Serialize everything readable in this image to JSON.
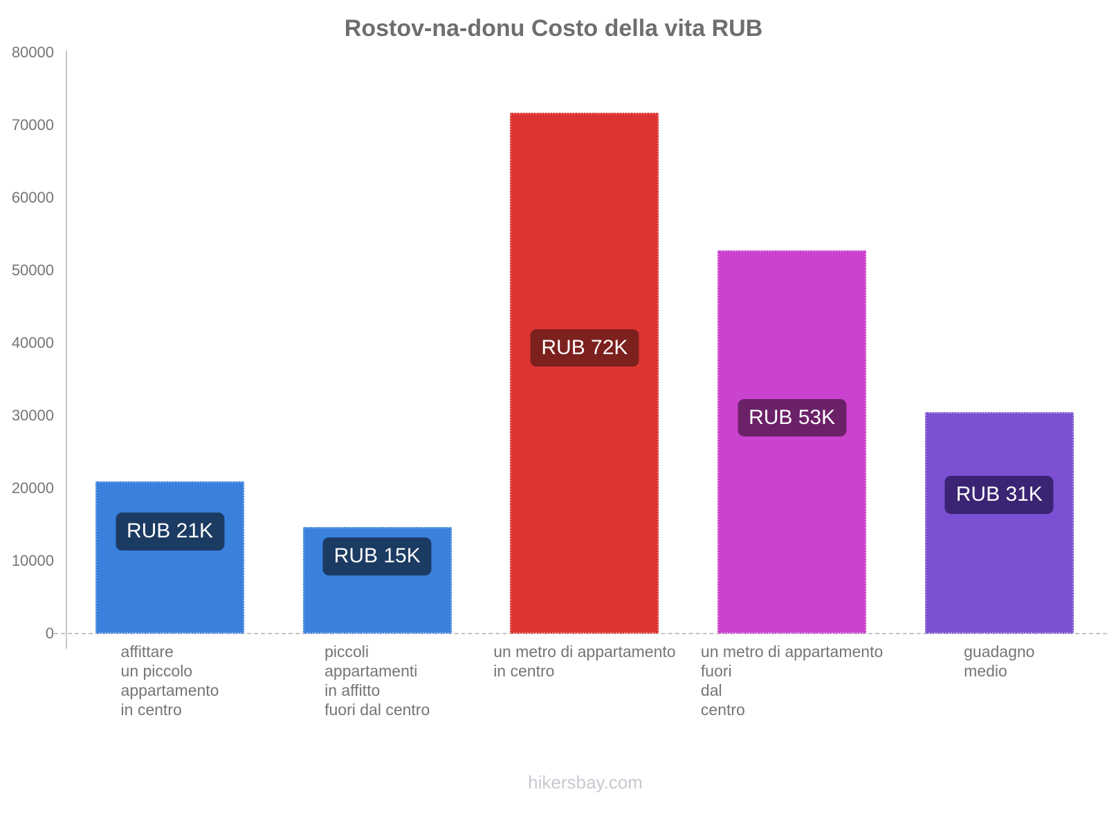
{
  "page": {
    "title": "Rostov-na-donu Costo della vita RUB",
    "watermark": "hikersbay.com"
  },
  "chart_data": {
    "type": "bar",
    "title": "Rostov-na-donu Costo della vita RUB",
    "currency": "RUB",
    "ylim": [
      0,
      80000
    ],
    "yticks": [
      0,
      10000,
      20000,
      30000,
      40000,
      50000,
      60000,
      70000,
      80000
    ],
    "grid": false,
    "legend": false,
    "axis_color": "#c6c6c6",
    "tick_text_color": "#757575",
    "title_color": "#6e6e6e",
    "watermark_color": "#c6c9d0",
    "bars": [
      {
        "category_lines": [
          "affittare",
          "un piccolo",
          "appartamento",
          "in centro"
        ],
        "value": 21000,
        "label": "RUB 21K",
        "bar_color": "#3a81de",
        "label_bg_color": "#1c3b62",
        "label_text_color": "#ffffff"
      },
      {
        "category_lines": [
          "piccoli",
          "appartamenti",
          "in affitto",
          "fuori dal centro"
        ],
        "value": 14700,
        "label": "RUB 15K",
        "bar_color": "#3a81de",
        "label_bg_color": "#1c3b62",
        "label_text_color": "#ffffff"
      },
      {
        "category_lines": [
          "un metro di appartamento",
          "in centro"
        ],
        "value": 71700,
        "label": "RUB 72K",
        "bar_color": "#de3431",
        "label_bg_color": "#7c211e",
        "label_text_color": "#ffffff"
      },
      {
        "category_lines": [
          "un metro di appartamento",
          "fuori",
          "dal",
          "centro"
        ],
        "value": 52800,
        "label": "RUB 53K",
        "bar_color": "#cb42ce",
        "label_bg_color": "#6b2168",
        "label_text_color": "#ffffff"
      },
      {
        "category_lines": [
          "guadagno",
          "medio"
        ],
        "value": 30500,
        "label": "RUB 31K",
        "bar_color": "#7b50d2",
        "label_bg_color": "#3a2473",
        "label_text_color": "#ffffff"
      }
    ]
  }
}
